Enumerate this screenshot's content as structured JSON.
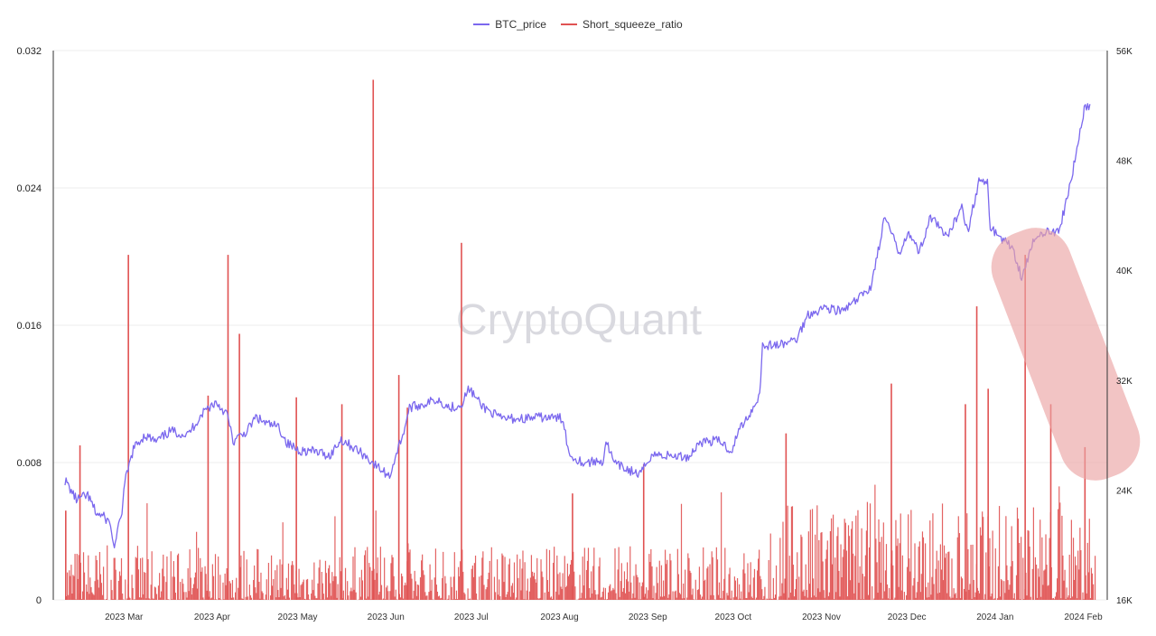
{
  "legend": {
    "price_label": "BTC_price",
    "ratio_label": "Short_squeeze_ratio"
  },
  "watermark": "CryptoQuant",
  "colors": {
    "price": "#7b68ee",
    "ratio": "#e05252",
    "highlight": "#eba4a4"
  },
  "chart_data": {
    "type": "line",
    "x_ticks": [
      "2023 Mar",
      "2023 Apr",
      "2023 May",
      "2023 Jun",
      "2023 Jul",
      "2023 Aug",
      "2023 Sep",
      "2023 Oct",
      "2023 Nov",
      "2023 Dec",
      "2024 Jan",
      "2024 Feb"
    ],
    "left_axis": {
      "ticks": [
        "0",
        "0.008",
        "0.016",
        "0.024",
        "0.032"
      ],
      "range": [
        0,
        0.032
      ]
    },
    "right_axis": {
      "ticks": [
        "16K",
        "24K",
        "32K",
        "40K",
        "48K",
        "56K"
      ],
      "range": [
        16000,
        56000
      ]
    },
    "x_range": [
      "2023-02-21",
      "2024-02-17"
    ],
    "series": [
      {
        "name": "BTC_price",
        "axis": "right",
        "points": [
          [
            "2023-02-21",
            24700
          ],
          [
            "2023-02-25",
            23300
          ],
          [
            "2023-03-01",
            23600
          ],
          [
            "2023-03-04",
            22300
          ],
          [
            "2023-03-07",
            22000
          ],
          [
            "2023-03-09",
            21500
          ],
          [
            "2023-03-10",
            19900
          ],
          [
            "2023-03-11",
            20400
          ],
          [
            "2023-03-13",
            22500
          ],
          [
            "2023-03-14",
            24500
          ],
          [
            "2023-03-17",
            27000
          ],
          [
            "2023-03-21",
            28000
          ],
          [
            "2023-03-25",
            27500
          ],
          [
            "2023-03-30",
            28300
          ],
          [
            "2023-04-05",
            28000
          ],
          [
            "2023-04-11",
            29800
          ],
          [
            "2023-04-15",
            30400
          ],
          [
            "2023-04-19",
            29500
          ],
          [
            "2023-04-21",
            27500
          ],
          [
            "2023-04-26",
            28300
          ],
          [
            "2023-04-29",
            29300
          ],
          [
            "2023-05-03",
            28800
          ],
          [
            "2023-05-07",
            28600
          ],
          [
            "2023-05-10",
            27400
          ],
          [
            "2023-05-14",
            26900
          ],
          [
            "2023-05-20",
            26800
          ],
          [
            "2023-05-25",
            26500
          ],
          [
            "2023-05-29",
            27700
          ],
          [
            "2023-06-03",
            27000
          ],
          [
            "2023-06-07",
            26400
          ],
          [
            "2023-06-10",
            25800
          ],
          [
            "2023-06-15",
            25000
          ],
          [
            "2023-06-17",
            26400
          ],
          [
            "2023-06-20",
            28300
          ],
          [
            "2023-06-22",
            30000
          ],
          [
            "2023-06-26",
            30200
          ],
          [
            "2023-07-02",
            30600
          ],
          [
            "2023-07-06",
            30000
          ],
          [
            "2023-07-10",
            30200
          ],
          [
            "2023-07-13",
            31400
          ],
          [
            "2023-07-17",
            30200
          ],
          [
            "2023-07-24",
            29200
          ],
          [
            "2023-07-31",
            29200
          ],
          [
            "2023-08-08",
            29300
          ],
          [
            "2023-08-15",
            29200
          ],
          [
            "2023-08-17",
            26600
          ],
          [
            "2023-08-22",
            26000
          ],
          [
            "2023-08-29",
            26100
          ],
          [
            "2023-08-30",
            27600
          ],
          [
            "2023-09-02",
            25900
          ],
          [
            "2023-09-11",
            25100
          ],
          [
            "2023-09-15",
            26600
          ],
          [
            "2023-09-21",
            26500
          ],
          [
            "2023-09-28",
            26400
          ],
          [
            "2023-10-02",
            27500
          ],
          [
            "2023-10-09",
            27600
          ],
          [
            "2023-10-13",
            26800
          ],
          [
            "2023-10-16",
            28500
          ],
          [
            "2023-10-20",
            29700
          ],
          [
            "2023-10-23",
            31000
          ],
          [
            "2023-10-24",
            34500
          ],
          [
            "2023-10-31",
            34600
          ],
          [
            "2023-11-05",
            35000
          ],
          [
            "2023-11-09",
            36800
          ],
          [
            "2023-11-15",
            37300
          ],
          [
            "2023-11-21",
            37000
          ],
          [
            "2023-11-26",
            37800
          ],
          [
            "2023-12-01",
            38800
          ],
          [
            "2023-12-04",
            41800
          ],
          [
            "2023-12-06",
            43900
          ],
          [
            "2023-12-11",
            41200
          ],
          [
            "2023-12-14",
            42900
          ],
          [
            "2023-12-18",
            41300
          ],
          [
            "2023-12-22",
            43900
          ],
          [
            "2023-12-28",
            42300
          ],
          [
            "2024-01-02",
            44800
          ],
          [
            "2024-01-04",
            42800
          ],
          [
            "2024-01-08",
            46500
          ],
          [
            "2024-01-11",
            46300
          ],
          [
            "2024-01-12",
            43200
          ],
          [
            "2024-01-15",
            42500
          ],
          [
            "2024-01-20",
            41600
          ],
          [
            "2024-01-23",
            39500
          ],
          [
            "2024-01-27",
            42000
          ],
          [
            "2024-02-01",
            43000
          ],
          [
            "2024-02-05",
            42700
          ],
          [
            "2024-02-08",
            45300
          ],
          [
            "2024-02-10",
            47200
          ],
          [
            "2024-02-14",
            51800
          ],
          [
            "2024-02-16",
            52100
          ]
        ]
      },
      {
        "name": "Short_squeeze_ratio",
        "axis": "left",
        "type": "bar",
        "peaks": [
          [
            "2023-02-21",
            0.0052
          ],
          [
            "2023-02-26",
            0.009
          ],
          [
            "2023-03-15",
            0.0201
          ],
          [
            "2023-04-12",
            0.0119
          ],
          [
            "2023-04-19",
            0.0201
          ],
          [
            "2023-04-23",
            0.0155
          ],
          [
            "2023-05-13",
            0.0118
          ],
          [
            "2023-05-29",
            0.0114
          ],
          [
            "2023-06-09",
            0.0303
          ],
          [
            "2023-06-18",
            0.0131
          ],
          [
            "2023-06-21",
            0.0112
          ],
          [
            "2023-07-10",
            0.0208
          ],
          [
            "2023-08-18",
            0.0062
          ],
          [
            "2023-09-12",
            0.0079
          ],
          [
            "2023-11-01",
            0.0097
          ],
          [
            "2023-12-08",
            0.0126
          ],
          [
            "2024-01-03",
            0.0114
          ],
          [
            "2024-01-07",
            0.0171
          ],
          [
            "2024-01-11",
            0.0123
          ],
          [
            "2024-01-24",
            0.0201
          ],
          [
            "2024-02-02",
            0.0114
          ],
          [
            "2024-02-14",
            0.0089
          ]
        ]
      }
    ],
    "title": "",
    "xlabel": "",
    "ylabel": "",
    "grid": true,
    "legend_position": "top-center"
  }
}
